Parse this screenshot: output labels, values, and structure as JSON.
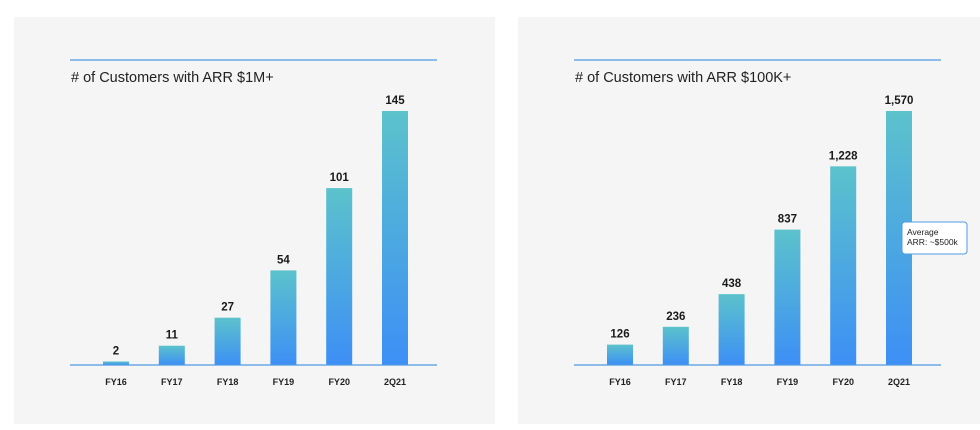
{
  "chart_data": [
    {
      "type": "bar",
      "title": "# of Customers with ARR $1M+",
      "categories": [
        "FY16",
        "FY17",
        "FY18",
        "FY19",
        "FY20",
        "2Q21"
      ],
      "values": [
        2,
        11,
        27,
        54,
        101,
        145
      ],
      "value_labels": [
        "2",
        "11",
        "27",
        "54",
        "101",
        "145"
      ],
      "ylim": [
        0,
        145
      ],
      "grid": false,
      "colors": {
        "bar_top": "#5cc2cc",
        "bar_bottom": "#3d8ff5",
        "rule": "#4f9be0"
      }
    },
    {
      "type": "bar",
      "title": "# of Customers with ARR $100K+",
      "categories": [
        "FY16",
        "FY17",
        "FY18",
        "FY19",
        "FY20",
        "2Q21"
      ],
      "values": [
        126,
        236,
        438,
        837,
        1228,
        1570
      ],
      "value_labels": [
        "126",
        "236",
        "438",
        "837",
        "1,228",
        "1,570"
      ],
      "ylim": [
        0,
        1570
      ],
      "grid": false,
      "annotation": {
        "lines": [
          "Average",
          "ARR: ~$500k"
        ],
        "category": "2Q21"
      },
      "colors": {
        "bar_top": "#5cc2cc",
        "bar_bottom": "#3d8ff5",
        "rule": "#4f9be0"
      }
    }
  ]
}
